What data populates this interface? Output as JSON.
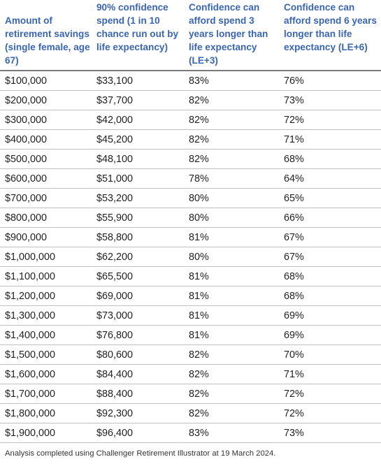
{
  "table": {
    "headers": [
      "Amount of retirement savings (single female, age 67)",
      "90% confidence spend (1 in 10 chance run out by life expectancy)",
      "Confidence can afford spend 3 years longer than life expectancy (LE+3)",
      "Confidence can afford spend 6 years longer than life expectancy (LE+6)"
    ],
    "rows": [
      [
        "$100,000",
        "$33,100",
        "83%",
        "76%"
      ],
      [
        "$200,000",
        "$37,700",
        "82%",
        "73%"
      ],
      [
        "$300,000",
        "$42,000",
        "82%",
        "72%"
      ],
      [
        "$400,000",
        "$45,200",
        "82%",
        "71%"
      ],
      [
        "$500,000",
        "$48,100",
        "82%",
        "68%"
      ],
      [
        "$600,000",
        "$51,000",
        "78%",
        "64%"
      ],
      [
        "$700,000",
        "$53,200",
        "80%",
        "65%"
      ],
      [
        "$800,000",
        "$55,900",
        "80%",
        "66%"
      ],
      [
        "$900,000",
        "$58,800",
        "81%",
        "67%"
      ],
      [
        "$1,000,000",
        "$62,200",
        "80%",
        "67%"
      ],
      [
        "$1,100,000",
        "$65,500",
        "81%",
        "68%"
      ],
      [
        "$1,200,000",
        "$69,000",
        "81%",
        "68%"
      ],
      [
        "$1,300,000",
        "$73,000",
        "81%",
        "69%"
      ],
      [
        "$1,400,000",
        "$76,800",
        "81%",
        "69%"
      ],
      [
        "$1,500,000",
        "$80,600",
        "82%",
        "70%"
      ],
      [
        "$1,600,000",
        "$84,400",
        "82%",
        "71%"
      ],
      [
        "$1,700,000",
        "$88,400",
        "82%",
        "72%"
      ],
      [
        "$1,800,000",
        "$92,300",
        "82%",
        "72%"
      ],
      [
        "$1,900,000",
        "$96,400",
        "83%",
        "73%"
      ]
    ]
  },
  "footnote": "Analysis completed using Challenger Retirement Illustrator at 19 March 2024.",
  "colors": {
    "header_text": "#3a66ae",
    "body_text": "#222222",
    "row_divider": "#bdbdbd",
    "header_divider": "#7a7a7a"
  }
}
